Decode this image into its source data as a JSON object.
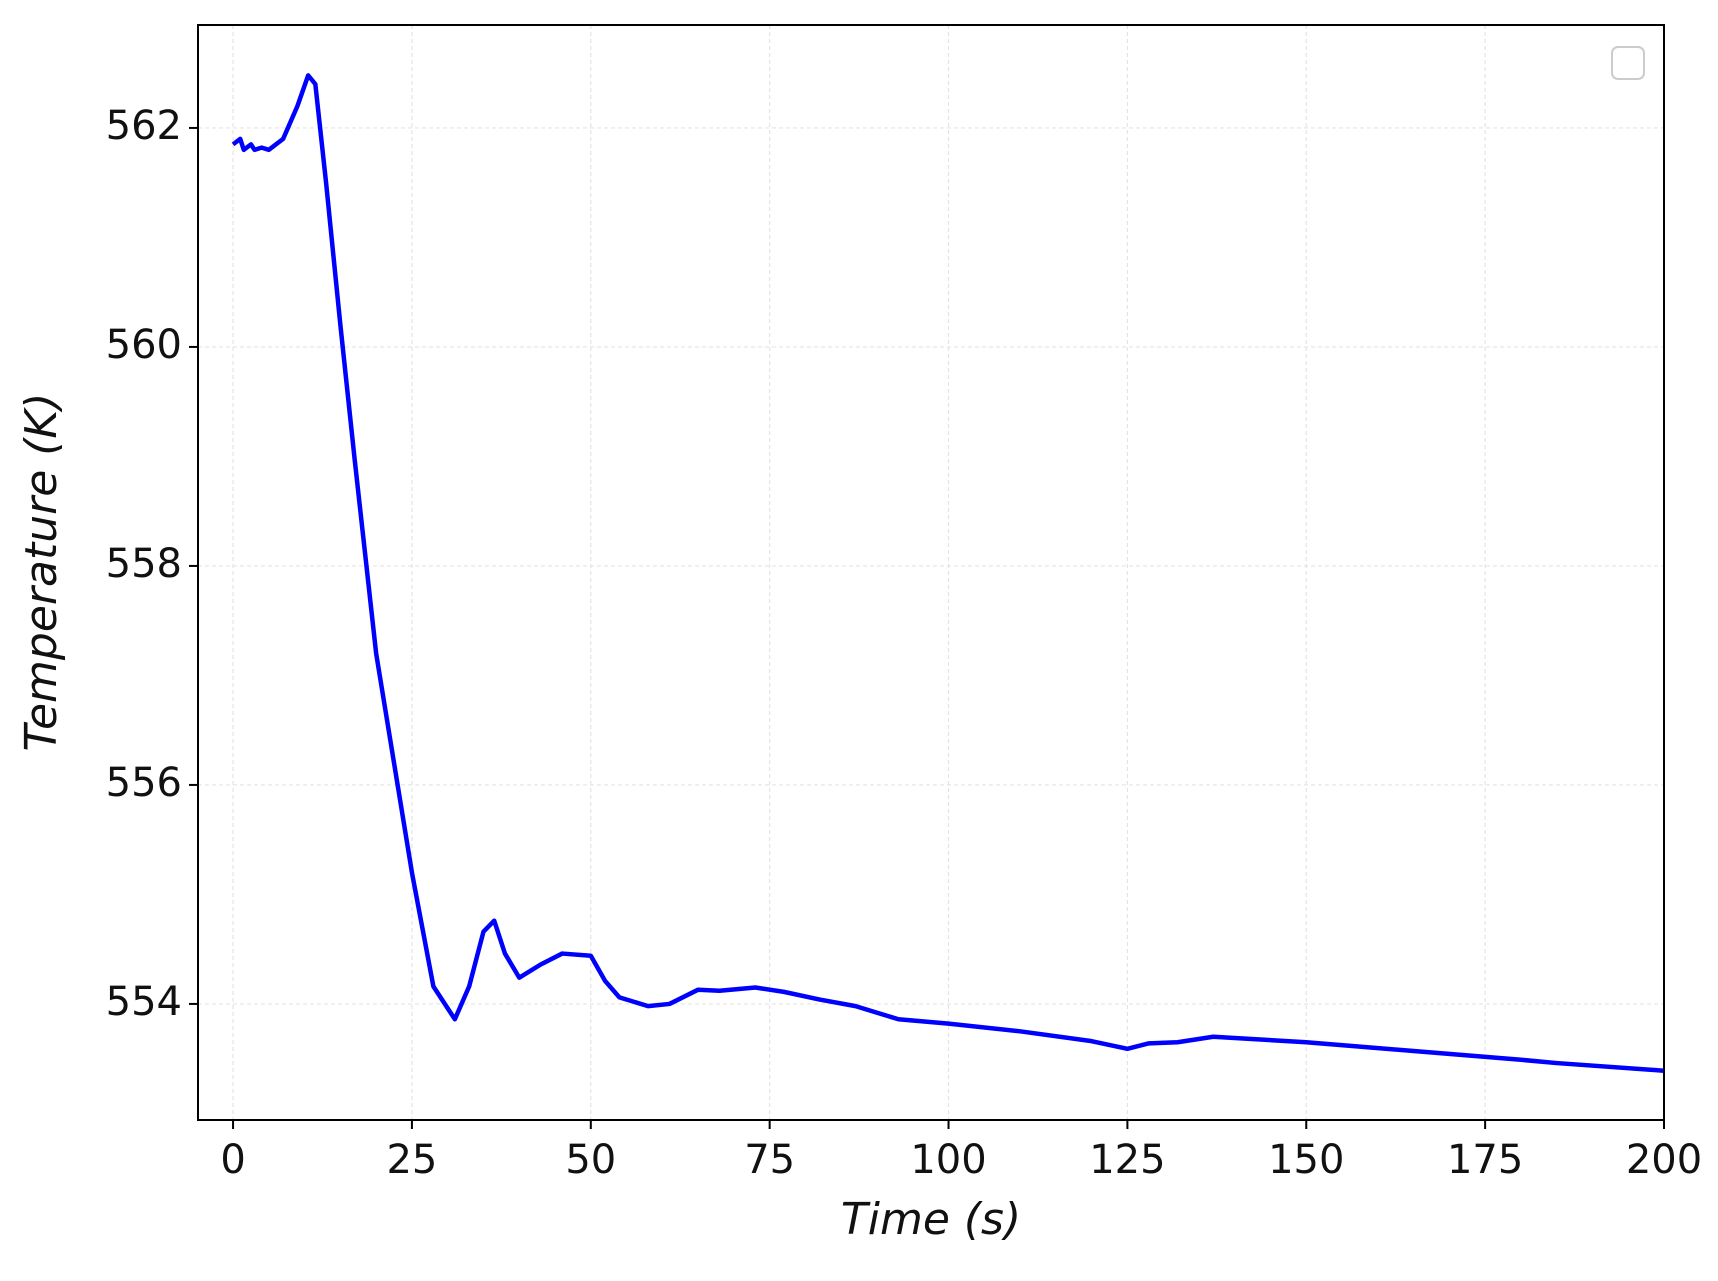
{
  "chart_data": {
    "type": "line",
    "x_label": "Time (s)",
    "y_label": "Temperature (K)",
    "x": [
      0,
      1,
      1.5,
      2.5,
      3,
      4,
      5,
      7,
      9,
      10.5,
      11.5,
      13,
      15,
      17,
      20,
      22,
      25,
      28,
      29,
      31,
      33,
      35,
      36.5,
      38,
      40,
      43,
      46,
      50,
      52,
      54,
      58,
      61,
      65,
      68,
      73,
      77,
      82,
      87,
      93,
      100,
      110,
      120,
      125,
      128,
      132,
      137,
      150,
      165,
      180,
      185,
      200
    ],
    "series": [
      {
        "color": "#0000ff",
        "values": [
          561.85,
          561.9,
          561.8,
          561.85,
          561.8,
          561.82,
          561.8,
          561.9,
          562.2,
          562.48,
          562.4,
          561.5,
          560.2,
          558.97,
          557.2,
          556.4,
          555.2,
          554.16,
          554.06,
          553.86,
          554.16,
          554.66,
          554.76,
          554.46,
          554.24,
          554.36,
          554.46,
          554.44,
          554.21,
          554.06,
          553.98,
          554.0,
          554.13,
          554.12,
          554.15,
          554.11,
          554.04,
          553.98,
          553.86,
          553.82,
          553.75,
          553.66,
          553.59,
          553.64,
          553.65,
          553.7,
          553.65,
          553.57,
          553.49,
          553.46,
          553.39
        ]
      }
    ],
    "xlim": [
      -4.9,
      200
    ],
    "ylim": [
      552.94,
      562.94
    ],
    "xticks": [
      0,
      25,
      50,
      75,
      100,
      125,
      150,
      175,
      200
    ],
    "yticks": [
      554,
      556,
      558,
      560,
      562
    ],
    "grid": true
  }
}
